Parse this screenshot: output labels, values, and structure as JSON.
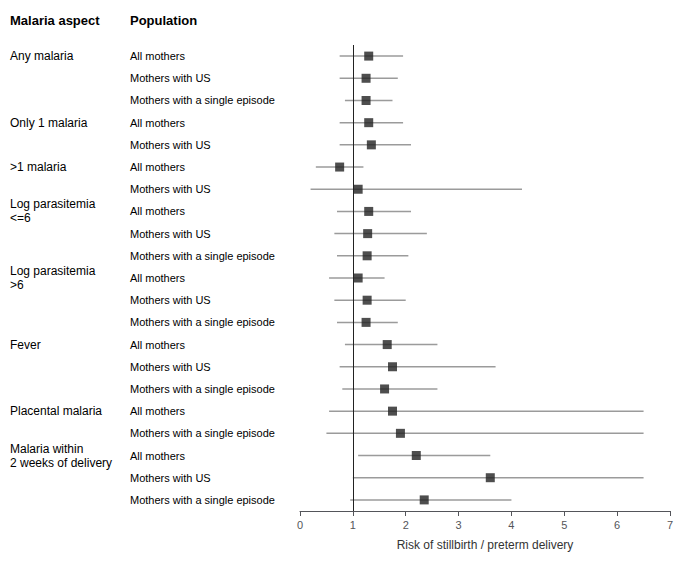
{
  "chart_data": {
    "type": "forest",
    "xlabel": "Risk of stillbirth / preterm delivery",
    "column_headers": [
      "Malaria aspect",
      "Population"
    ],
    "groups": [
      "Any malaria",
      null,
      null,
      "Only 1 malaria",
      null,
      ">1 malaria",
      null,
      "Log parasitemia\n<=6",
      null,
      null,
      "Log parasitemia\n>6",
      null,
      null,
      "Fever",
      null,
      null,
      "Placental malaria",
      null,
      "Malaria within\n2 weeks of delivery",
      null,
      null
    ],
    "categories": [
      "All mothers",
      "Mothers with US",
      "Mothers with a single episode",
      "All mothers",
      "Mothers with US",
      "All mothers",
      "Mothers with US",
      "All mothers",
      "Mothers with US",
      "Mothers with a single episode",
      "All mothers",
      "Mothers with US",
      "Mothers with a single episode",
      "All mothers",
      "Mothers with US",
      "Mothers with a single episode",
      "All mothers",
      "Mothers with a single episode",
      "All mothers",
      "Mothers with US",
      "Mothers with a single episode"
    ],
    "values": [
      1.3,
      1.25,
      1.25,
      1.3,
      1.35,
      0.75,
      1.1,
      1.3,
      1.28,
      1.27,
      1.1,
      1.27,
      1.25,
      1.65,
      1.75,
      1.6,
      1.75,
      1.9,
      2.2,
      3.6,
      2.35
    ],
    "ci_low": [
      0.75,
      0.75,
      0.85,
      0.75,
      0.75,
      0.3,
      0.2,
      0.7,
      0.65,
      0.7,
      0.55,
      0.65,
      0.7,
      0.85,
      0.75,
      0.8,
      0.55,
      0.5,
      1.1,
      1.0,
      0.95
    ],
    "ci_high": [
      1.95,
      1.85,
      1.75,
      1.95,
      2.1,
      1.2,
      4.2,
      2.1,
      2.4,
      2.05,
      1.6,
      2.0,
      1.85,
      2.6,
      3.7,
      2.6,
      6.5,
      6.5,
      3.6,
      6.5,
      4.0
    ],
    "xlim": [
      0,
      7
    ],
    "xticks": [
      0,
      1,
      2,
      3,
      4,
      5,
      6,
      7
    ],
    "reference_line": 1,
    "color": "#222222",
    "marker": "square",
    "grid": false
  }
}
